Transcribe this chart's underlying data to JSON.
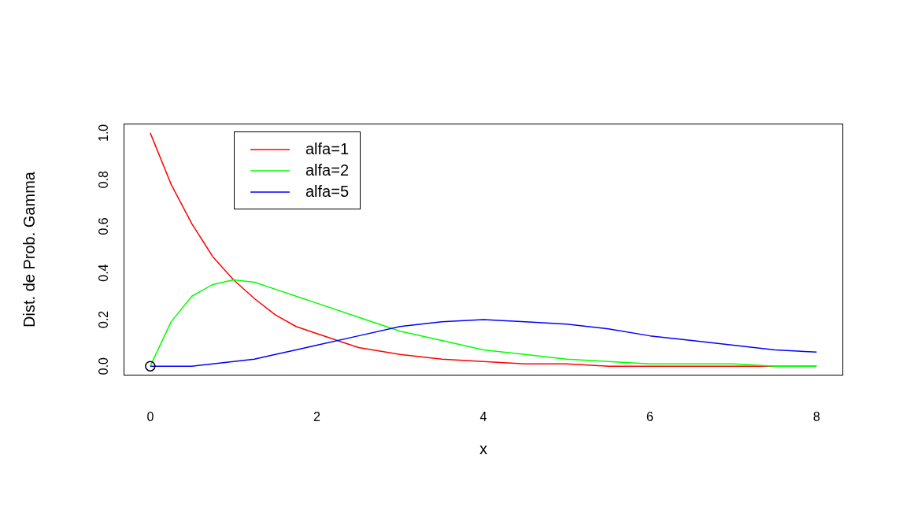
{
  "chart_data": {
    "type": "line",
    "xlabel": "x",
    "ylabel": "Dist. de Prob. Gamma",
    "x": [
      0,
      0.25,
      0.5,
      0.75,
      1,
      1.25,
      1.5,
      1.75,
      2,
      2.5,
      3,
      3.5,
      4,
      4.5,
      5,
      5.5,
      6,
      6.5,
      7,
      7.5,
      8
    ],
    "series": [
      {
        "name": "alfa=1",
        "color": "#ff0000",
        "values": [
          1,
          0.78,
          0.61,
          0.47,
          0.37,
          0.29,
          0.22,
          0.17,
          0.14,
          0.08,
          0.05,
          0.03,
          0.02,
          0.01,
          0.01,
          0,
          0,
          0,
          0,
          0,
          0
        ]
      },
      {
        "name": "alfa=2",
        "color": "#00ff00",
        "values": [
          0,
          0.19,
          0.3,
          0.35,
          0.37,
          0.36,
          0.33,
          0.3,
          0.27,
          0.21,
          0.15,
          0.11,
          0.07,
          0.05,
          0.03,
          0.02,
          0.01,
          0.01,
          0.01,
          0,
          0
        ]
      },
      {
        "name": "alfa=5",
        "color": "#0000ff",
        "values": [
          0,
          0,
          0,
          0.01,
          0.02,
          0.03,
          0.05,
          0.07,
          0.09,
          0.13,
          0.17,
          0.19,
          0.2,
          0.19,
          0.18,
          0.16,
          0.13,
          0.11,
          0.09,
          0.07,
          0.06
        ]
      },
      {
        "type": "scatter",
        "color": "#000000",
        "x": [
          0
        ],
        "values": [
          0
        ],
        "marker": "circle"
      }
    ],
    "xlim": [
      -0.32,
      8.32
    ],
    "xticks": [
      0,
      2,
      4,
      6,
      8
    ],
    "ylim": [
      -0.04,
      1.04
    ],
    "yticks": [
      {
        "value": 0,
        "label": "0.0"
      },
      {
        "value": 0.2,
        "label": "0.2"
      },
      {
        "value": 0.4,
        "label": "0.4"
      },
      {
        "value": 0.6,
        "label": "0.6"
      },
      {
        "value": 0.8,
        "label": "0.8"
      },
      {
        "value": 1,
        "label": "1.0"
      }
    ],
    "legend": "top left",
    "line_style": "solid"
  }
}
